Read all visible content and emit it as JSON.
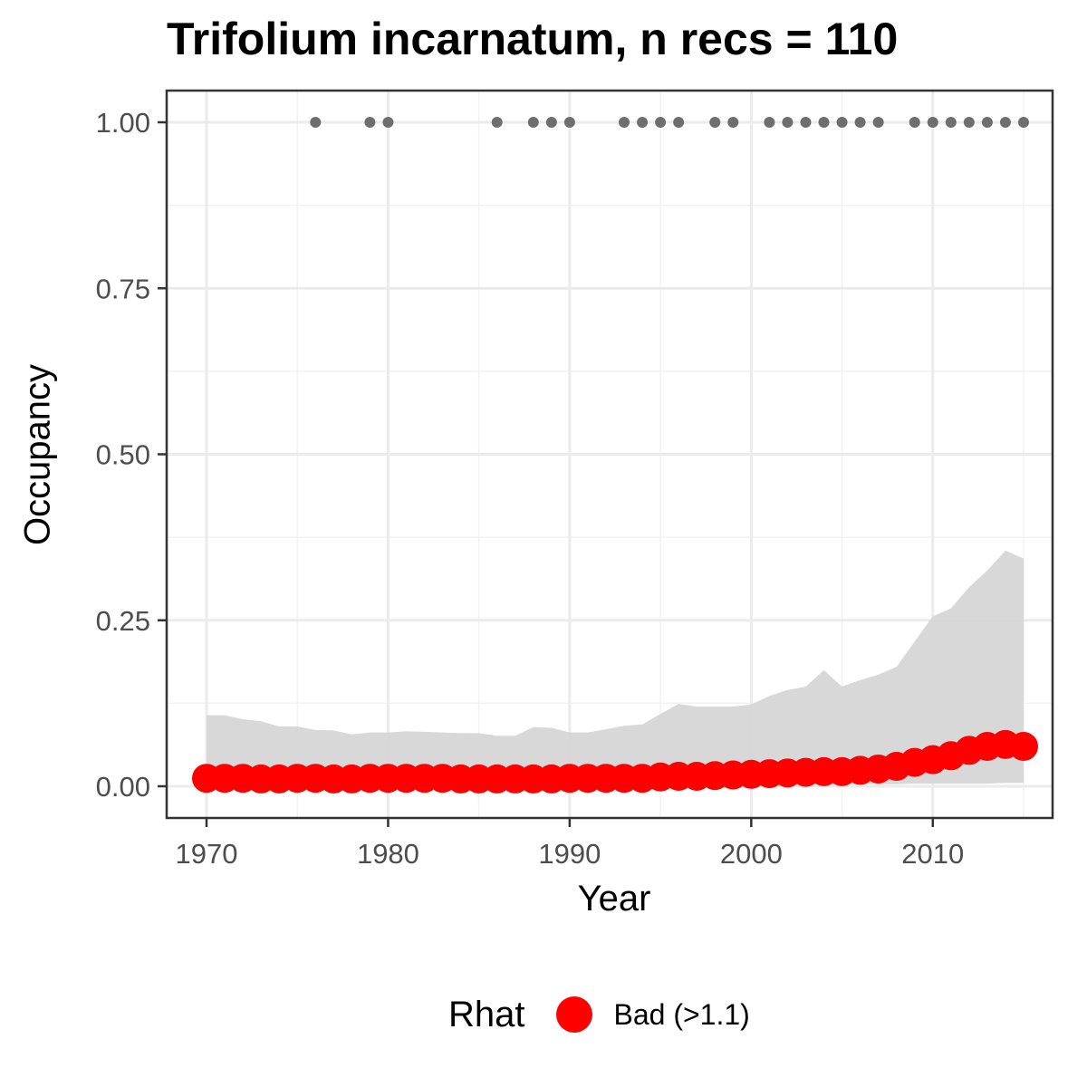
{
  "chart_data": {
    "type": "line",
    "title": "Trifolium incarnatum, n recs = 110",
    "xlabel": "Year",
    "ylabel": "Occupancy",
    "xlim": [
      1970,
      2015
    ],
    "ylim": [
      0,
      1
    ],
    "x_ticks": [
      "1970",
      "1980",
      "1990",
      "2000",
      "2010"
    ],
    "y_ticks": [
      "0.00",
      "0.25",
      "0.50",
      "0.75",
      "1.00"
    ],
    "grid": true,
    "x": [
      1970,
      1971,
      1972,
      1973,
      1974,
      1975,
      1976,
      1977,
      1978,
      1979,
      1980,
      1981,
      1982,
      1983,
      1984,
      1985,
      1986,
      1987,
      1988,
      1989,
      1990,
      1991,
      1992,
      1993,
      1994,
      1995,
      1996,
      1997,
      1998,
      1999,
      2000,
      2001,
      2002,
      2003,
      2004,
      2005,
      2006,
      2007,
      2008,
      2009,
      2010,
      2011,
      2012,
      2013,
      2014,
      2015
    ],
    "series": [
      {
        "name": "Bad (>1.1)",
        "color": "#ff0000",
        "values": [
          0.012,
          0.012,
          0.012,
          0.011,
          0.011,
          0.012,
          0.012,
          0.011,
          0.011,
          0.012,
          0.012,
          0.012,
          0.012,
          0.012,
          0.011,
          0.011,
          0.011,
          0.011,
          0.011,
          0.011,
          0.012,
          0.012,
          0.012,
          0.012,
          0.012,
          0.014,
          0.015,
          0.015,
          0.016,
          0.017,
          0.018,
          0.019,
          0.02,
          0.021,
          0.022,
          0.022,
          0.024,
          0.026,
          0.03,
          0.036,
          0.04,
          0.046,
          0.054,
          0.06,
          0.063,
          0.06
        ]
      }
    ],
    "ribbon": {
      "color": "#d6d6d6",
      "upper": [
        0.107,
        0.107,
        0.101,
        0.098,
        0.09,
        0.09,
        0.085,
        0.084,
        0.078,
        0.081,
        0.081,
        0.083,
        0.082,
        0.081,
        0.08,
        0.08,
        0.076,
        0.076,
        0.089,
        0.088,
        0.081,
        0.081,
        0.086,
        0.091,
        0.093,
        0.109,
        0.124,
        0.12,
        0.12,
        0.12,
        0.123,
        0.136,
        0.145,
        0.15,
        0.175,
        0.15,
        0.16,
        0.168,
        0.18,
        0.218,
        0.256,
        0.268,
        0.3,
        0.325,
        0.355,
        0.343
      ],
      "lower": [
        0.002,
        0.002,
        0.002,
        0.002,
        0.002,
        0.002,
        0.002,
        0.002,
        0.002,
        0.002,
        0.002,
        0.002,
        0.002,
        0.002,
        0.002,
        0.002,
        0.002,
        0.002,
        0.002,
        0.002,
        0.002,
        0.002,
        0.002,
        0.002,
        0.002,
        0.002,
        0.002,
        0.002,
        0.002,
        0.002,
        0.003,
        0.003,
        0.003,
        0.003,
        0.003,
        0.003,
        0.003,
        0.003,
        0.003,
        0.004,
        0.004,
        0.004,
        0.004,
        0.004,
        0.005,
        0.005
      ]
    },
    "records": {
      "color": "#6e6e6e",
      "years": [
        1976,
        1979,
        1980,
        1986,
        1988,
        1989,
        1990,
        1993,
        1994,
        1995,
        1996,
        1998,
        1999,
        2001,
        2002,
        2003,
        2004,
        2005,
        2006,
        2007,
        2009,
        2010,
        2011,
        2012,
        2013,
        2014,
        2015
      ],
      "value": 1.0
    },
    "legend": {
      "title": "Rhat",
      "position": "bottom",
      "entries": [
        "Bad (>1.1)"
      ]
    }
  }
}
